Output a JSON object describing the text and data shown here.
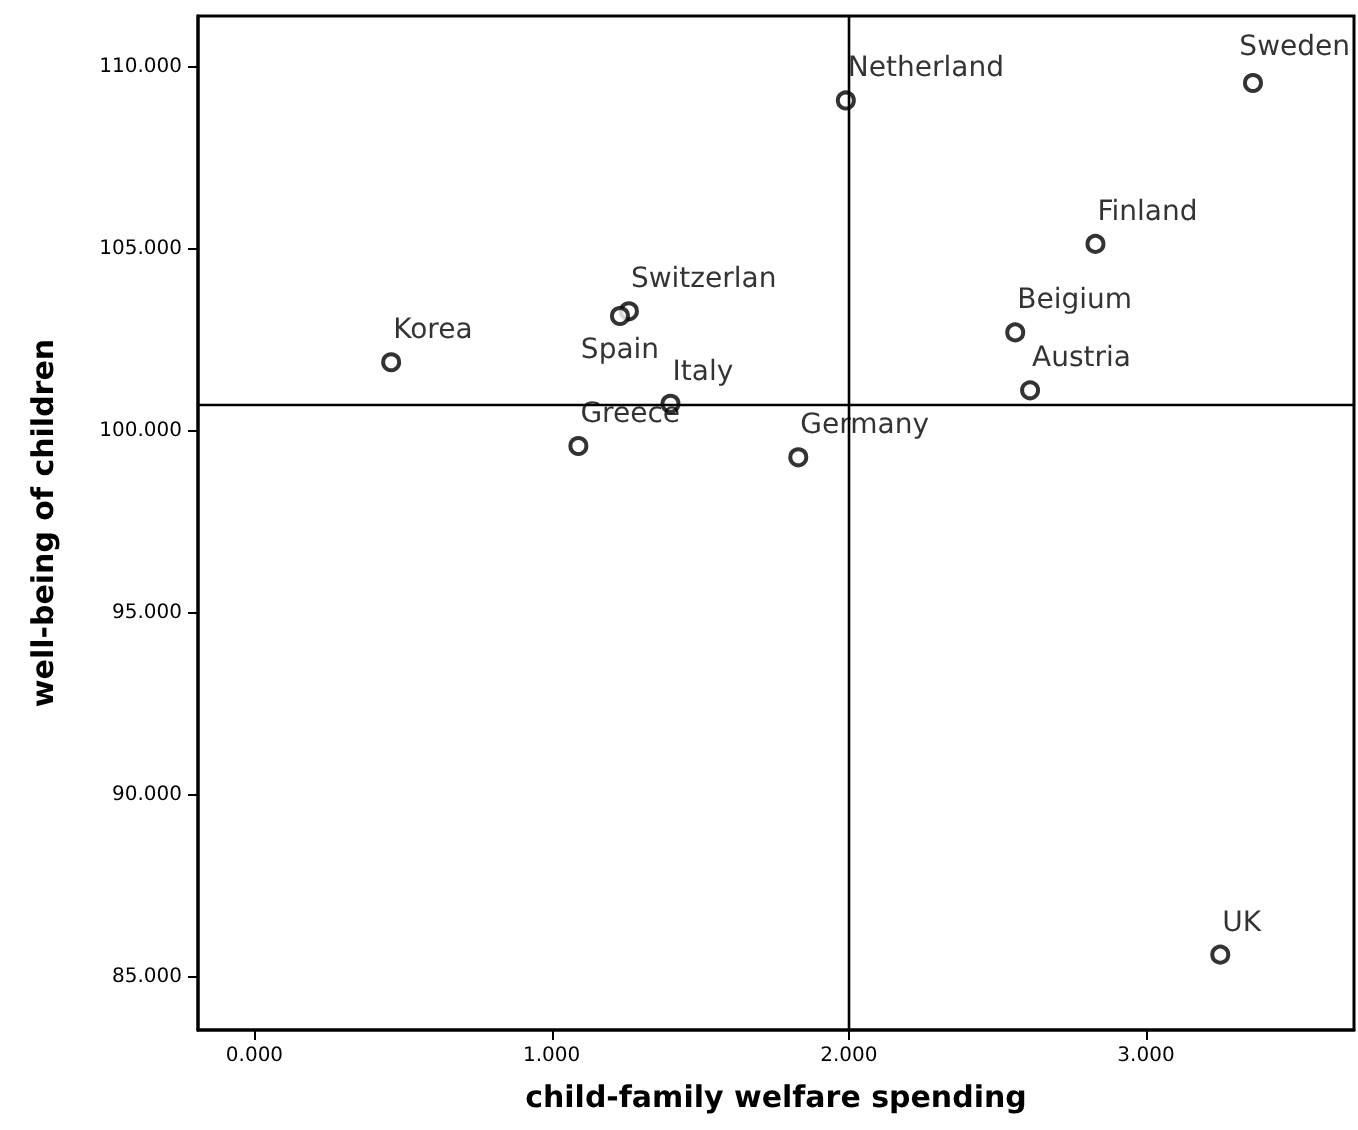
{
  "chart_data": {
    "type": "scatter",
    "xlabel": "child-family welfare spending",
    "ylabel": "well-being of children",
    "x": [
      1.99,
      3.36,
      2.83,
      2.56,
      2.61,
      1.26,
      1.23,
      0.46,
      1.4,
      1.09,
      1.83,
      3.25
    ],
    "series": [
      {
        "color": "#000000",
        "values": [
          109.08,
          109.56,
          105.14,
          102.71,
          101.12,
          103.29,
          103.16,
          101.89,
          100.75,
          99.59,
          99.28,
          85.62
        ],
        "value_labels": [
          "Netherland",
          "Sweden",
          "Finland",
          "Beigium",
          "Austria",
          "Switzerlan",
          "Spain",
          "Korea",
          "Italy",
          "Greece",
          "Germany",
          "UK"
        ]
      }
    ],
    "xlim": [
      -0.19,
      3.7
    ],
    "ylim": [
      83.55,
      111.4
    ],
    "xticks": [
      {
        "value": 0,
        "label": "0.000"
      },
      {
        "value": 1,
        "label": "1.000"
      },
      {
        "value": 2,
        "label": "2.000"
      },
      {
        "value": 3,
        "label": "3.000"
      }
    ],
    "yticks": [
      {
        "value": 85,
        "label": "85.000"
      },
      {
        "value": 90,
        "label": "90.000"
      },
      {
        "value": 95,
        "label": "95.000"
      },
      {
        "value": 100,
        "label": "100.000"
      },
      {
        "value": 105,
        "label": "105.000"
      },
      {
        "value": 110,
        "label": "110.000"
      }
    ],
    "ref_lines": [
      {
        "axis": "x",
        "value": 2.0,
        "color": "#000000"
      },
      {
        "axis": "y",
        "value": 100.75,
        "color": "#000000"
      }
    ],
    "grid": false,
    "marker": "circle"
  }
}
